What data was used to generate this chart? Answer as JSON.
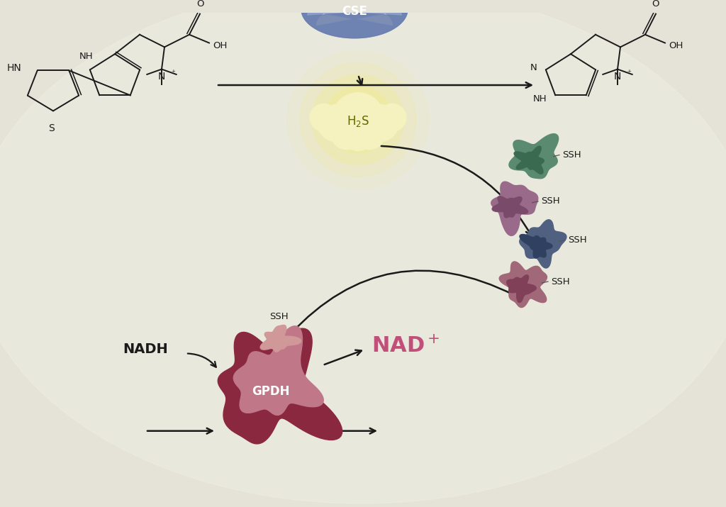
{
  "bg_color": "#e5e2d8",
  "bg_inner_color": "#ededdf",
  "arrow_color": "#1a1a1a",
  "mol_color": "#1a1a1a",
  "cse_body_color": "#8b9fc5",
  "cse_top_color": "#6a7faf",
  "cse_label": "CSE",
  "h2s_cloud_color": "#f5f2c0",
  "h2s_glow_color": "#f8f060",
  "h2s_label": "H₂S",
  "nad_color": "#c0507a",
  "nad_label": "NAD",
  "nadh_label": "NADH",
  "gpdh_label": "GPDH",
  "ssh_label": "SSH",
  "protein1_color": "#5a8a70",
  "protein1_dark": "#3a6a50",
  "protein2_color": "#9a6a8a",
  "protein2_dark": "#7a4a6a",
  "protein3_color": "#506080",
  "protein3_dark": "#304060",
  "protein4_color": "#a06878",
  "protein4_dark": "#804058",
  "gpdh_outer_color": "#8a2840",
  "gpdh_inner_color": "#c07888",
  "gpdh_ssh_color": "#d09898"
}
